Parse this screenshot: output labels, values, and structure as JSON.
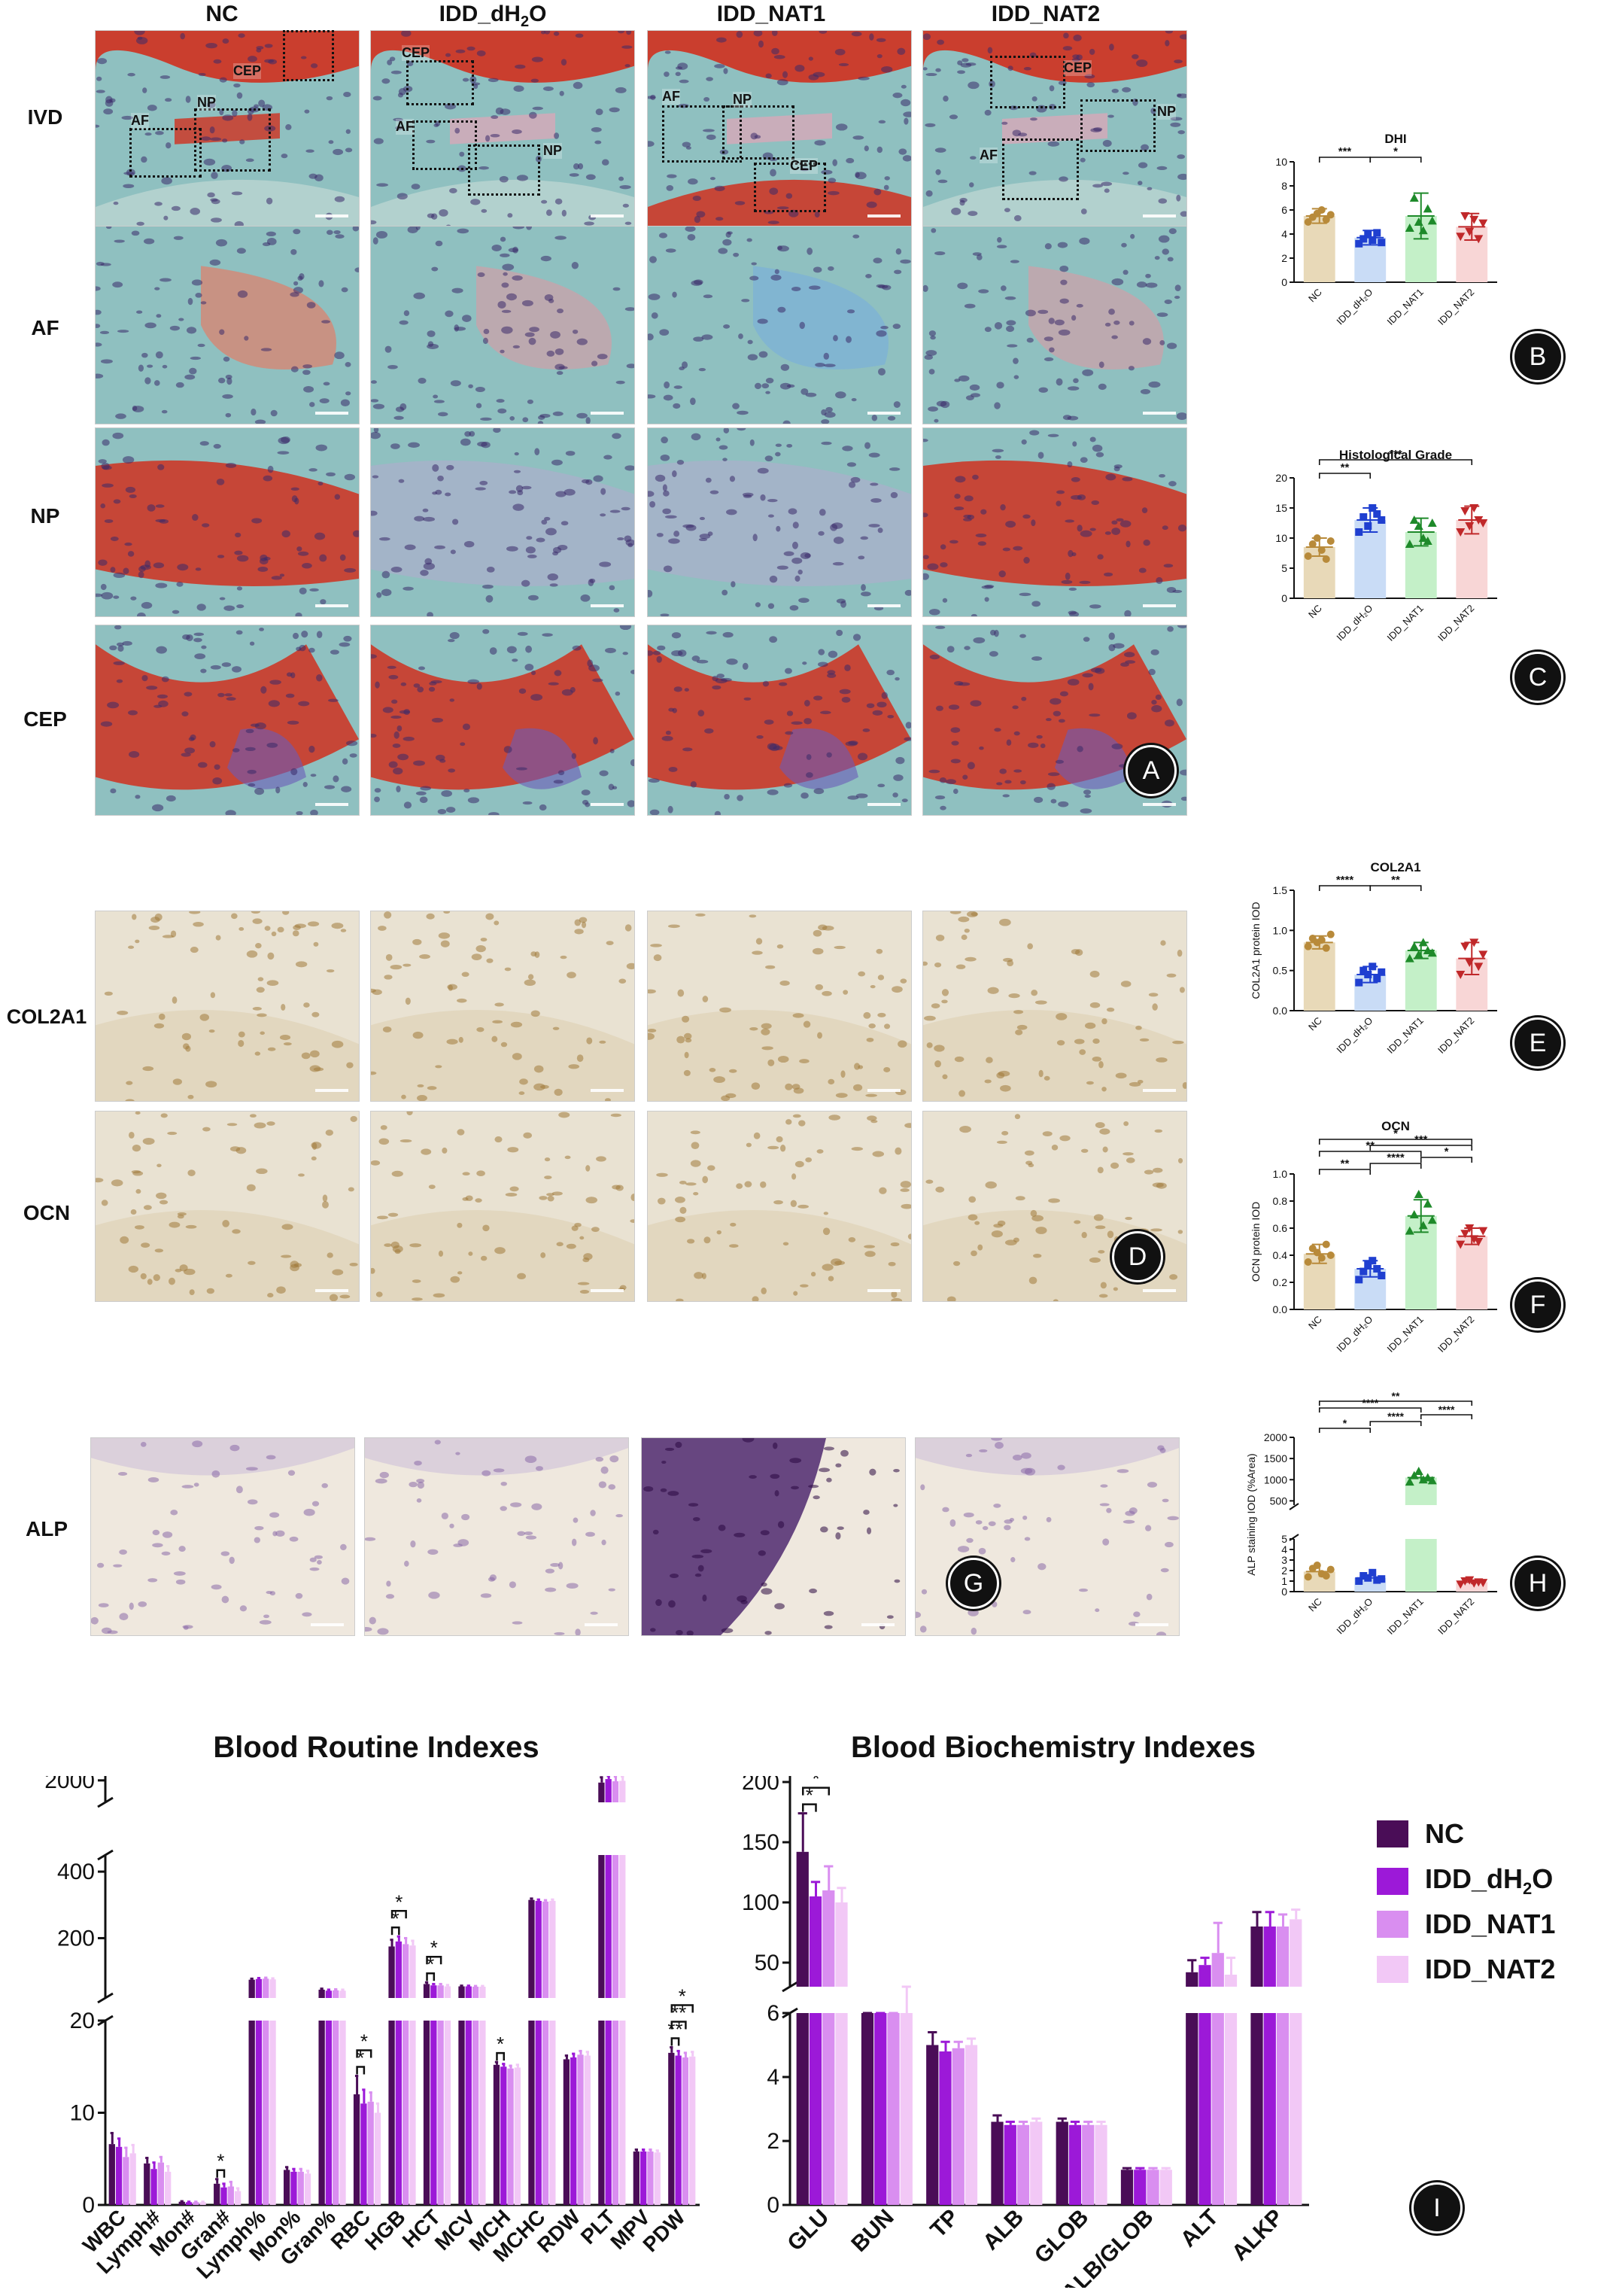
{
  "columns": [
    "NC",
    "IDD_dH2O",
    "IDD_NAT1",
    "IDD_NAT2"
  ],
  "he_rows": [
    "IVD",
    "AF",
    "NP",
    "CEP"
  ],
  "ihc_rows": [
    "COL2A1",
    "OCN"
  ],
  "alp_row": "ALP",
  "roi_labels": [
    "CEP",
    "AF",
    "NP"
  ],
  "panel_letters": {
    "A": "A",
    "B": "B",
    "C": "C",
    "D": "D",
    "E": "E",
    "F": "F",
    "G": "G",
    "H": "H",
    "I": "I"
  },
  "colors": {
    "he_bg": "#8fc0c0",
    "he_red": "#d0301e",
    "ihc_bg": "#e9e2d2",
    "alp_bg": "#efe8de",
    "nc_bar": "#e8d9b8",
    "dh2o_bar": "#c9dcf6",
    "nat1_bar": "#c4f0c8",
    "nat2_bar": "#f8d6d6",
    "nc_dot": "#b88a3a",
    "dh2o_dot": "#1f3fd0",
    "nat1_dot": "#1e8a2a",
    "nat2_dot": "#c0282a",
    "blood_nc": "#4a0d57",
    "blood_dh2o": "#9c19d8",
    "blood_nat1": "#d98ef0",
    "blood_nat2": "#f2c8f6"
  },
  "small_charts": {
    "dhi": {
      "title": "DHI",
      "ylabel": "",
      "ylim": [
        0,
        10
      ],
      "yticks": [
        0,
        2,
        4,
        6,
        8,
        10
      ],
      "categories": [
        "NC",
        "IDD_dH2O",
        "IDD_NAT1",
        "IDD_NAT2"
      ],
      "values": [
        5.5,
        3.7,
        5.5,
        4.6
      ],
      "errors": [
        0.6,
        0.6,
        1.9,
        1.1
      ],
      "points": [
        [
          5.0,
          5.4,
          5.7,
          6.0,
          5.2,
          5.6
        ],
        [
          3.2,
          3.6,
          4.0,
          3.5,
          4.1,
          3.3
        ],
        [
          4.5,
          7.0,
          5.0,
          4.3,
          6.1,
          5.1
        ],
        [
          3.8,
          5.5,
          4.2,
          5.2,
          3.6,
          4.9
        ]
      ],
      "sig": [
        {
          "from": 0,
          "to": 1,
          "label": "***"
        },
        {
          "from": 1,
          "to": 2,
          "label": "*"
        }
      ]
    },
    "histo": {
      "title": "Histological Grade",
      "ylabel": "",
      "ylim": [
        0,
        20
      ],
      "yticks": [
        0,
        5,
        10,
        15,
        20
      ],
      "categories": [
        "NC",
        "IDD_dH2O",
        "IDD_NAT1",
        "IDD_NAT2"
      ],
      "values": [
        8.5,
        13.0,
        11.0,
        13.0
      ],
      "errors": [
        1.5,
        2.0,
        2.3,
        2.3
      ],
      "points": [
        [
          7.0,
          9.0,
          10.0,
          8.0,
          6.5,
          9.5
        ],
        [
          11.0,
          13.5,
          12.0,
          15.0,
          14.0,
          13.0
        ],
        [
          9.0,
          13.0,
          12.0,
          10.0,
          9.5,
          12.5
        ],
        [
          11.0,
          14.5,
          12.0,
          15.0,
          13.0,
          12.5
        ]
      ],
      "sig": [
        {
          "from": 0,
          "to": 1,
          "label": "**"
        },
        {
          "from": 0,
          "to": 3,
          "label": "***"
        }
      ]
    },
    "col2a1": {
      "title": "COL2A1",
      "ylabel": "COL2A1 protein IOD",
      "ylim": [
        0,
        1.5
      ],
      "yticks": [
        0.0,
        0.5,
        1.0,
        1.5
      ],
      "ytick_labels": [
        "0.0",
        "0.5",
        "1.0",
        "1.5"
      ],
      "categories": [
        "NC",
        "IDD_dH2O",
        "IDD_NAT1",
        "IDD_NAT2"
      ],
      "values": [
        0.85,
        0.45,
        0.75,
        0.65
      ],
      "errors": [
        0.08,
        0.1,
        0.1,
        0.2
      ],
      "points": [
        [
          0.8,
          0.9,
          0.85,
          0.88,
          0.78,
          0.95
        ],
        [
          0.35,
          0.5,
          0.45,
          0.55,
          0.4,
          0.48
        ],
        [
          0.65,
          0.8,
          0.7,
          0.85,
          0.75,
          0.72
        ],
        [
          0.45,
          0.8,
          0.6,
          0.85,
          0.55,
          0.7
        ]
      ],
      "sig": [
        {
          "from": 0,
          "to": 1,
          "label": "****"
        },
        {
          "from": 1,
          "to": 2,
          "label": "**"
        }
      ]
    },
    "ocn": {
      "title": "OCN",
      "ylabel": "OCN protein IOD",
      "ylim": [
        0,
        1.0
      ],
      "yticks": [
        0.0,
        0.2,
        0.4,
        0.6,
        0.8,
        1.0
      ],
      "ytick_labels": [
        "0.0",
        "0.2",
        "0.4",
        "0.6",
        "0.8",
        "1.0"
      ],
      "categories": [
        "NC",
        "IDD_dH2O",
        "IDD_NAT1",
        "IDD_NAT2"
      ],
      "values": [
        0.41,
        0.3,
        0.69,
        0.54
      ],
      "errors": [
        0.07,
        0.06,
        0.12,
        0.06
      ],
      "points": [
        [
          0.35,
          0.45,
          0.42,
          0.38,
          0.48,
          0.4
        ],
        [
          0.22,
          0.28,
          0.33,
          0.36,
          0.3,
          0.25
        ],
        [
          0.58,
          0.7,
          0.85,
          0.62,
          0.78,
          0.66
        ],
        [
          0.48,
          0.56,
          0.6,
          0.52,
          0.5,
          0.58
        ]
      ],
      "sig": [
        {
          "from": 0,
          "to": 1,
          "label": "**"
        },
        {
          "from": 1,
          "to": 2,
          "label": "****"
        },
        {
          "from": 2,
          "to": 3,
          "label": "*"
        },
        {
          "from": 0,
          "to": 2,
          "label": "**"
        },
        {
          "from": 1,
          "to": 3,
          "label": "***"
        },
        {
          "from": 0,
          "to": 3,
          "label": "*"
        }
      ]
    },
    "alp": {
      "title": "",
      "ylabel": "ALP staining IOD (%Area)",
      "lower_ticks": [
        0,
        1,
        2,
        3,
        4,
        5
      ],
      "upper_ticks": [
        500,
        1000,
        1500,
        2000
      ],
      "categories": [
        "NC",
        "IDD_dH2O",
        "IDD_NAT1",
        "IDD_NAT2"
      ],
      "values": [
        1.9,
        1.3,
        1050,
        0.9
      ],
      "errors": [
        0.5,
        0.3,
        120,
        0.2
      ],
      "points": [
        [
          1.4,
          2.2,
          2.5,
          1.7,
          1.5,
          2.1
        ],
        [
          1.0,
          1.5,
          1.3,
          1.8,
          1.1,
          1.2
        ],
        [
          950,
          1100,
          1200,
          1000,
          1050,
          980
        ],
        [
          0.7,
          1.0,
          1.1,
          0.8,
          0.9,
          0.85
        ]
      ],
      "sig": [
        {
          "from": 0,
          "to": 1,
          "label": "*"
        },
        {
          "from": 1,
          "to": 2,
          "label": "****"
        },
        {
          "from": 2,
          "to": 3,
          "label": "****"
        },
        {
          "from": 0,
          "to": 2,
          "label": "****"
        },
        {
          "from": 0,
          "to": 3,
          "label": "**"
        }
      ]
    }
  },
  "chart_data": [
    {
      "type": "bar",
      "title": "Blood Routine Indexes",
      "categories": [
        "WBC",
        "Lymph#",
        "Mon#",
        "Gran#",
        "Lymph%",
        "Mon%",
        "Gran%",
        "RBC",
        "HGB",
        "HCT",
        "MCV",
        "MCH",
        "MCHC",
        "RDW",
        "PLT",
        "MPV",
        "PDW"
      ],
      "series": [
        {
          "name": "NC",
          "values": [
            6.6,
            4.5,
            0.35,
            2.3,
            75,
            3.8,
            45,
            12.0,
            175,
            62,
            55,
            15.2,
            315,
            15.8,
            1950,
            5.8,
            16.5
          ]
        },
        {
          "name": "IDD_dH2O",
          "values": [
            6.3,
            3.9,
            0.3,
            1.9,
            77,
            3.6,
            42,
            11.0,
            190,
            58,
            55,
            15.0,
            312,
            16.0,
            2030,
            5.8,
            16.2
          ]
        },
        {
          "name": "IDD_NAT1",
          "values": [
            5.2,
            4.6,
            0.3,
            2.0,
            78,
            3.6,
            43,
            11.2,
            182,
            58,
            54,
            14.8,
            310,
            16.3,
            1980,
            5.8,
            16.0
          ]
        },
        {
          "name": "IDD_NAT2",
          "values": [
            5.6,
            3.6,
            0.3,
            1.5,
            76,
            3.4,
            42,
            10.0,
            178,
            55,
            54,
            14.9,
            312,
            16.2,
            1990,
            5.7,
            16.1
          ]
        }
      ],
      "errors": [
        [
          1.2,
          0.6,
          0.05,
          0.5,
          3,
          0.3,
          3,
          2.0,
          20,
          5,
          2,
          0.3,
          4,
          0.4,
          120,
          0.2,
          0.6
        ],
        [
          0.9,
          0.7,
          0.05,
          0.4,
          3,
          0.3,
          3,
          1.5,
          15,
          4,
          2,
          0.3,
          4,
          0.4,
          100,
          0.2,
          0.5
        ],
        [
          1.0,
          0.6,
          0.05,
          0.5,
          3,
          0.3,
          3,
          1.0,
          18,
          4,
          2,
          0.3,
          4,
          0.4,
          110,
          0.2,
          0.5
        ],
        [
          0.9,
          0.6,
          0.05,
          0.3,
          3,
          0.3,
          3,
          1.0,
          14,
          4,
          2,
          0.3,
          4,
          0.4,
          100,
          0.2,
          0.5
        ]
      ],
      "y_segments": [
        {
          "range": [
            0,
            20
          ],
          "ticks": [
            0,
            10,
            20
          ]
        },
        {
          "range": [
            20,
            450
          ],
          "ticks": [
            200,
            400
          ]
        },
        {
          "range": [
            1500,
            2100
          ],
          "ticks": [
            2000
          ]
        }
      ],
      "sig": [
        {
          "cat": "Gran#",
          "label": "*"
        },
        {
          "cat": "RBC",
          "label": "*"
        },
        {
          "cat": "RBC",
          "label": "*"
        },
        {
          "cat": "HGB",
          "label": "*"
        },
        {
          "cat": "HGB",
          "label": "*"
        },
        {
          "cat": "HCT",
          "label": "*"
        },
        {
          "cat": "HCT",
          "label": "*"
        },
        {
          "cat": "MCH",
          "label": "*"
        },
        {
          "cat": "PDW",
          "label": "**"
        },
        {
          "cat": "PDW",
          "label": "**"
        },
        {
          "cat": "PDW",
          "label": "*"
        }
      ]
    },
    {
      "type": "bar",
      "title": "Blood Biochemistry Indexes",
      "categories": [
        "GLU",
        "BUN",
        "TP",
        "ALB",
        "GLOB",
        "ALB/GLOB",
        "ALT",
        "ALKP"
      ],
      "series": [
        {
          "name": "NC",
          "values": [
            142,
            27,
            5.0,
            2.6,
            2.6,
            1.1,
            42,
            80
          ]
        },
        {
          "name": "IDD_dH2O",
          "values": [
            105,
            27,
            4.8,
            2.5,
            2.5,
            1.1,
            48,
            80
          ]
        },
        {
          "name": "IDD_NAT1",
          "values": [
            110,
            25,
            4.9,
            2.5,
            2.5,
            1.1,
            58,
            80
          ]
        },
        {
          "name": "IDD_NAT2",
          "values": [
            100,
            28,
            5.0,
            2.6,
            2.5,
            1.1,
            40,
            86
          ]
        }
      ],
      "errors": [
        [
          32,
          2,
          0.4,
          0.2,
          0.1,
          0.05,
          10,
          12
        ],
        [
          12,
          1,
          0.3,
          0.1,
          0.1,
          0.05,
          6,
          12
        ],
        [
          20,
          2,
          0.2,
          0.1,
          0.1,
          0.05,
          25,
          10
        ],
        [
          12,
          2,
          0.2,
          0.1,
          0.1,
          0.05,
          14,
          8
        ]
      ],
      "y_segments": [
        {
          "range": [
            0,
            6
          ],
          "ticks": [
            0,
            2,
            4,
            6
          ]
        },
        {
          "range": [
            30,
            205
          ],
          "ticks": [
            50,
            100,
            150,
            200
          ]
        }
      ],
      "sig": [
        {
          "cat": "GLU",
          "label": "*"
        },
        {
          "cat": "GLU",
          "label": "*"
        }
      ]
    }
  ],
  "legend": [
    "NC",
    "IDD_dH2O",
    "IDD_NAT1",
    "IDD_NAT2"
  ]
}
